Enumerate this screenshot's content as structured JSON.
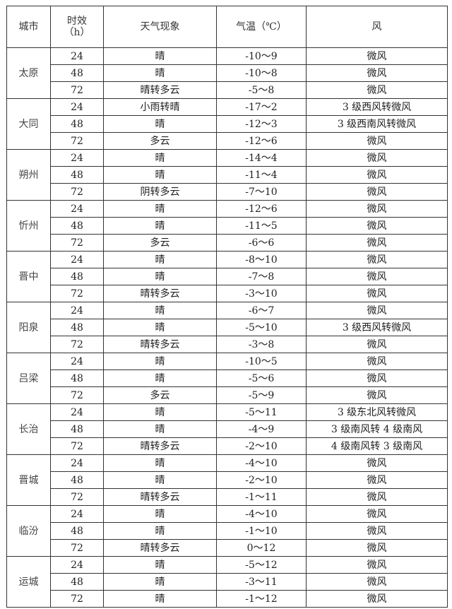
{
  "header": {
    "city": "城市",
    "period_line1": "时效",
    "period_line2": "（h）",
    "weather": "天气现象",
    "temp": "气温（℃）",
    "wind": "风"
  },
  "cities": [
    {
      "name": "太原",
      "rows": [
        [
          "24",
          "晴",
          "-10～9",
          "微风"
        ],
        [
          "48",
          "晴",
          "-10～8",
          "微风"
        ],
        [
          "72",
          "晴转多云",
          "-5～8",
          "微风"
        ]
      ]
    },
    {
      "name": "大同",
      "rows": [
        [
          "24",
          "小雨转晴",
          "-17～2",
          "3 级西风转微风"
        ],
        [
          "48",
          "晴",
          "-12～3",
          "3 级西南风转微风"
        ],
        [
          "72",
          "多云",
          "-12～6",
          "微风"
        ]
      ]
    },
    {
      "name": "朔州",
      "rows": [
        [
          "24",
          "晴",
          "-14～4",
          "微风"
        ],
        [
          "48",
          "晴",
          "-11～4",
          "微风"
        ],
        [
          "72",
          "阴转多云",
          "-7～10",
          "微风"
        ]
      ]
    },
    {
      "name": "忻州",
      "rows": [
        [
          "24",
          "晴",
          "-12～6",
          "微风"
        ],
        [
          "48",
          "晴",
          "-11～5",
          "微风"
        ],
        [
          "72",
          "多云",
          "-6～6",
          "微风"
        ]
      ]
    },
    {
      "name": "晋中",
      "rows": [
        [
          "24",
          "晴",
          "-8～10",
          "微风"
        ],
        [
          "48",
          "晴",
          "-7～8",
          "微风"
        ],
        [
          "72",
          "晴转多云",
          "-3～10",
          "微风"
        ]
      ]
    },
    {
      "name": "阳泉",
      "rows": [
        [
          "24",
          "晴",
          "-6～7",
          "微风"
        ],
        [
          "48",
          "晴",
          "-5～10",
          "3 级西风转微风"
        ],
        [
          "72",
          "晴转多云",
          "-3～8",
          "微风"
        ]
      ]
    },
    {
      "name": "吕梁",
      "rows": [
        [
          "24",
          "晴",
          "-10～5",
          "微风"
        ],
        [
          "48",
          "晴",
          "-5～6",
          "微风"
        ],
        [
          "72",
          "多云",
          "-5～9",
          "微风"
        ]
      ]
    },
    {
      "name": "长治",
      "rows": [
        [
          "24",
          "晴",
          "-5～11",
          "3 级东北风转微风"
        ],
        [
          "48",
          "晴",
          "-4～9",
          "3 级南风转 4 级南风"
        ],
        [
          "72",
          "晴转多云",
          "-2～10",
          "4 级南风转 3 级南风"
        ]
      ]
    },
    {
      "name": "晋城",
      "rows": [
        [
          "24",
          "晴",
          "-4～10",
          "微风"
        ],
        [
          "48",
          "晴",
          "-2～10",
          "微风"
        ],
        [
          "72",
          "晴转多云",
          "-1～11",
          "微风"
        ]
      ]
    },
    {
      "name": "临汾",
      "rows": [
        [
          "24",
          "晴",
          "-4～10",
          "微风"
        ],
        [
          "48",
          "晴",
          "-1～10",
          "微风"
        ],
        [
          "72",
          "晴转多云",
          "0～12",
          "微风"
        ]
      ]
    },
    {
      "name": "运城",
      "rows": [
        [
          "24",
          "晴",
          "-5～12",
          "微风"
        ],
        [
          "48",
          "晴",
          "-3～11",
          "微风"
        ],
        [
          "72",
          "晴",
          "-1～12",
          "微风"
        ]
      ]
    }
  ]
}
